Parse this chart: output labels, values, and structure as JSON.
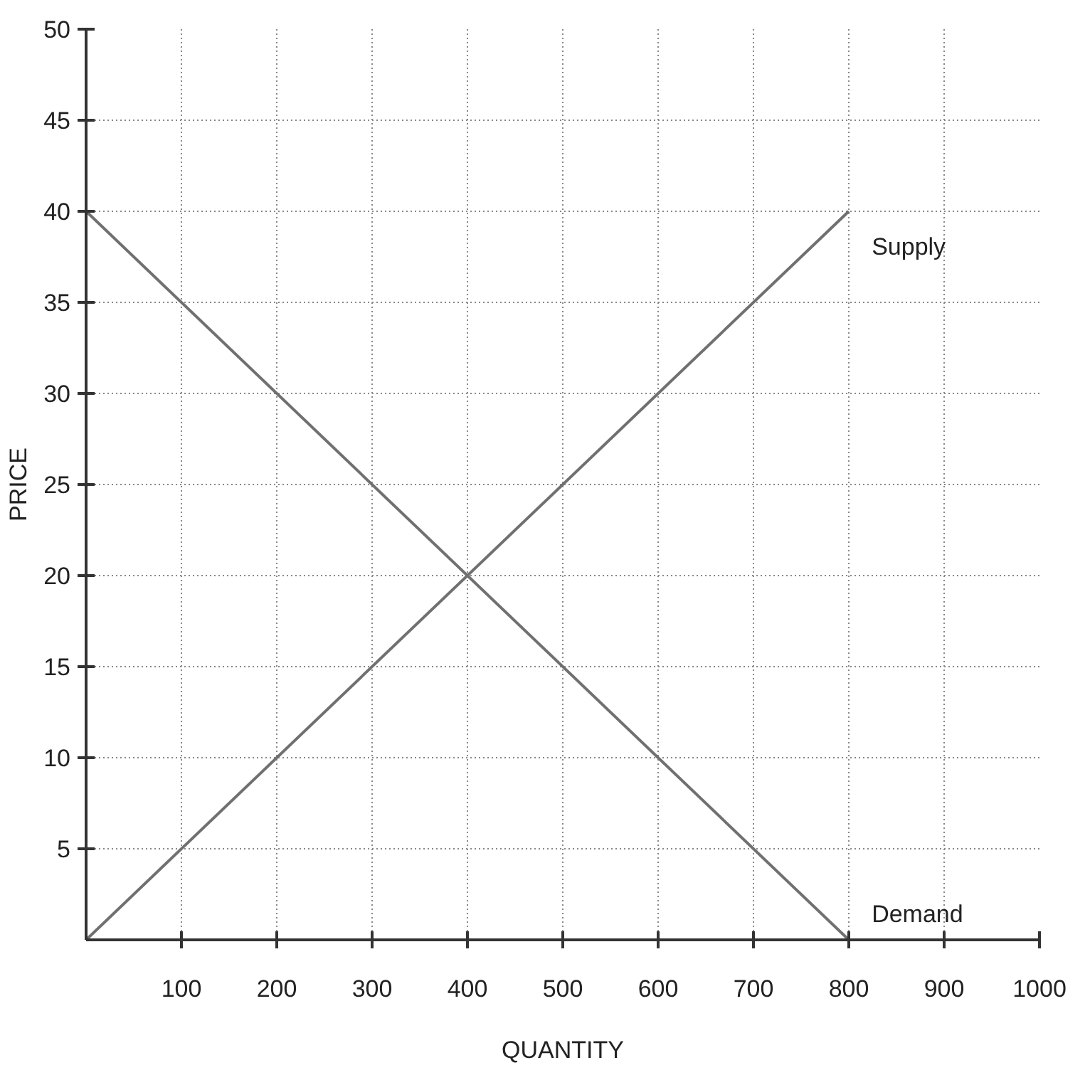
{
  "chart_data": {
    "type": "line",
    "xlabel": "QUANTITY",
    "ylabel": "PRICE",
    "xlim": [
      0,
      1000
    ],
    "ylim": [
      0,
      50
    ],
    "xticks": [
      100,
      200,
      300,
      400,
      500,
      600,
      700,
      800,
      900,
      1000
    ],
    "yticks": [
      5,
      10,
      15,
      20,
      25,
      30,
      35,
      40,
      45,
      50
    ],
    "grid": true,
    "line_style": "solid",
    "x": [
      0,
      800
    ],
    "series": [
      {
        "name": "Supply",
        "color": "#707070",
        "values": [
          0,
          40
        ]
      },
      {
        "name": "Demand",
        "color": "#707070",
        "values": [
          40,
          0
        ]
      }
    ]
  }
}
